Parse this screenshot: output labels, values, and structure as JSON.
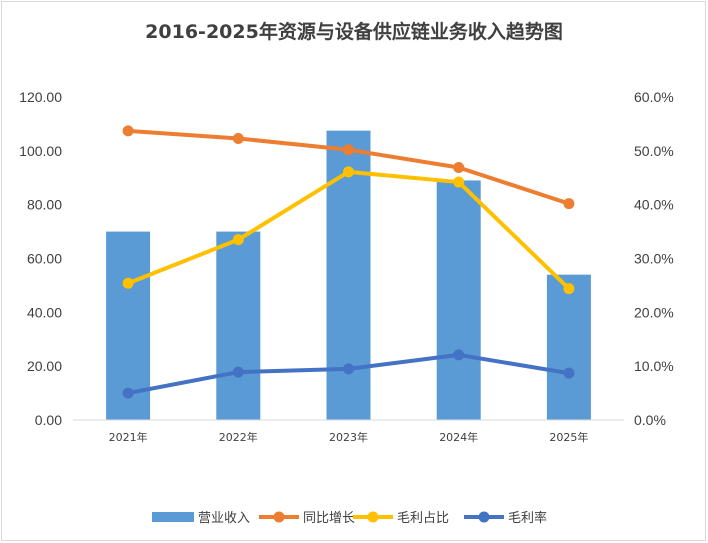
{
  "chart_data": {
    "type": "bar",
    "title": "2016-2025年资源与设备供应链业务收入趋势图",
    "categories": [
      "2021年",
      "2022年",
      "2023年",
      "2024年",
      "2025年"
    ],
    "left_axis": {
      "min": 0,
      "max": 120,
      "step": 20,
      "tick_labels": [
        "0.00",
        "20.00",
        "40.00",
        "60.00",
        "80.00",
        "100.00",
        "120.00"
      ]
    },
    "right_axis": {
      "min": 0,
      "max": 0.6,
      "step": 0.1,
      "tick_labels": [
        "0.0%",
        "10.0%",
        "20.0%",
        "30.0%",
        "40.0%",
        "50.0%",
        "60.0%"
      ]
    },
    "series": [
      {
        "name": "营业收入",
        "type": "bar",
        "axis": "left",
        "color": "#5b9bd5",
        "values": [
          70,
          70,
          107.5,
          89,
          54
        ]
      },
      {
        "name": "同比增长",
        "type": "line",
        "axis": "right",
        "color": "#ed7d31",
        "values": [
          0.537,
          0.523,
          0.502,
          0.469,
          0.402
        ]
      },
      {
        "name": "毛利占比",
        "type": "line",
        "axis": "right",
        "color": "#ffc000",
        "values": [
          0.254,
          0.335,
          0.461,
          0.442,
          0.244
        ]
      },
      {
        "name": "毛利率",
        "type": "line",
        "axis": "right",
        "color": "#4472c4",
        "values": [
          0.05,
          0.089,
          0.095,
          0.121,
          0.087
        ]
      }
    ],
    "grid": false,
    "legend": "bottom"
  }
}
